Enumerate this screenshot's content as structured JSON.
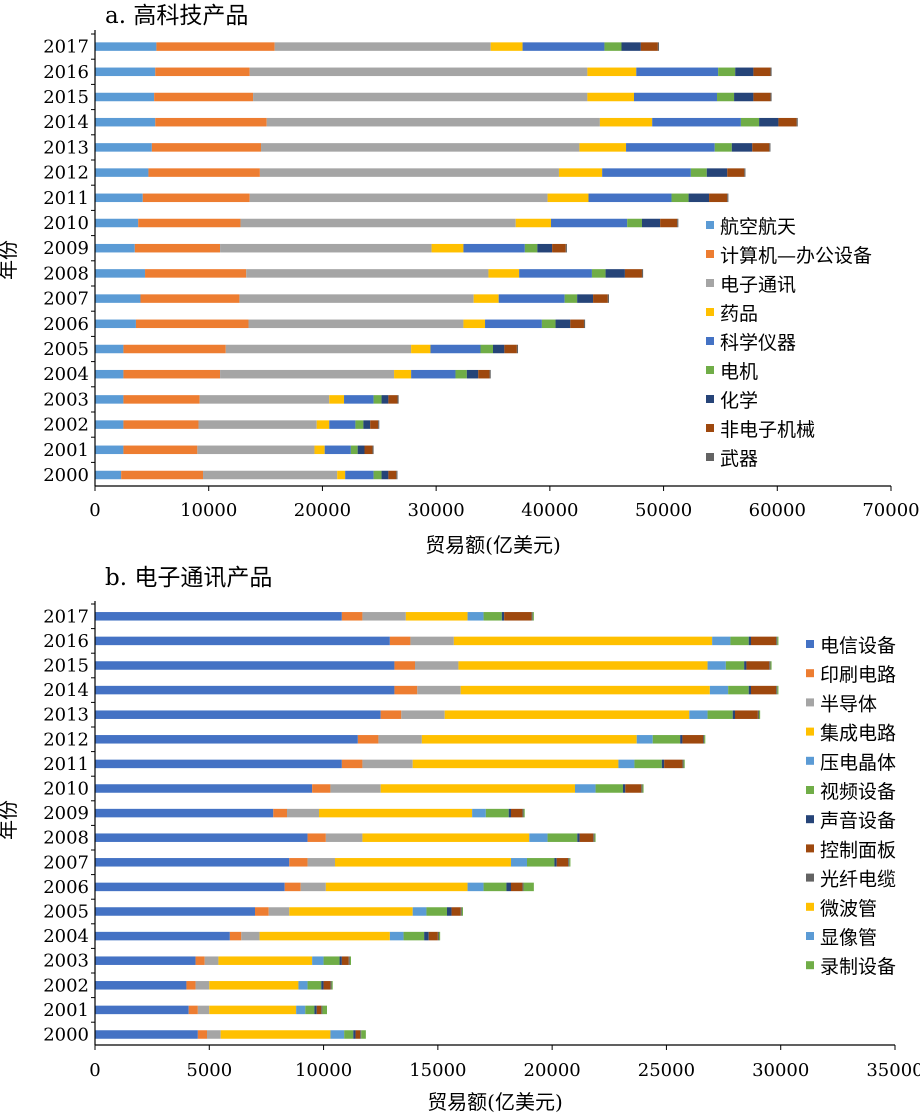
{
  "chart_data": [
    {
      "type": "bar",
      "stacked": true,
      "orientation": "horizontal",
      "title": "a. 高科技产品",
      "xlabel": "贸易额(亿美元)",
      "ylabel": "年份",
      "xlim": [
        0,
        70000
      ],
      "xticks": [
        "0",
        "10000",
        "20000",
        "30000",
        "40000",
        "50000",
        "60000",
        "70000"
      ],
      "legend_position": "right",
      "categories": [
        "2017",
        "2016",
        "2015",
        "2014",
        "2013",
        "2012",
        "2011",
        "2010",
        "2009",
        "2008",
        "2007",
        "2006",
        "2005",
        "2004",
        "2003",
        "2002",
        "2001",
        "2000"
      ],
      "series": [
        {
          "name": "航空航天",
          "color": "#5b9bd5",
          "values": [
            5400,
            5300,
            5200,
            5300,
            5000,
            4700,
            4200,
            3800,
            3500,
            4400,
            4000,
            3600,
            2500,
            2500,
            2500,
            2500,
            2500,
            2300
          ]
        },
        {
          "name": "计算机—办公设备",
          "color": "#ed7d31",
          "values": [
            10400,
            8300,
            8700,
            9800,
            9600,
            9800,
            9400,
            9000,
            7500,
            8900,
            8700,
            9900,
            9000,
            8500,
            6700,
            6600,
            6500,
            7200
          ]
        },
        {
          "name": "电子通讯",
          "color": "#a5a5a5",
          "values": [
            19000,
            29700,
            29400,
            29300,
            28000,
            26300,
            26200,
            24200,
            18600,
            21300,
            20600,
            18900,
            16300,
            15300,
            11400,
            10400,
            10300,
            11800
          ]
        },
        {
          "name": "药品",
          "color": "#ffc000",
          "values": [
            2800,
            4300,
            4100,
            4600,
            4100,
            3800,
            3600,
            3100,
            2800,
            2700,
            2200,
            1900,
            1700,
            1500,
            1300,
            1100,
            900,
            700
          ]
        },
        {
          "name": "科学仪器",
          "color": "#4472c4",
          "values": [
            7200,
            7200,
            7300,
            7800,
            7800,
            7800,
            7300,
            6700,
            5400,
            6400,
            5800,
            5000,
            4400,
            3900,
            2600,
            2300,
            2300,
            2500
          ]
        },
        {
          "name": "电机",
          "color": "#70ad47",
          "values": [
            1500,
            1500,
            1500,
            1600,
            1500,
            1400,
            1500,
            1300,
            1100,
            1200,
            1100,
            1200,
            1100,
            1000,
            700,
            700,
            600,
            700
          ]
        },
        {
          "name": "化学",
          "color": "#264478",
          "values": [
            1700,
            1600,
            1700,
            1700,
            1800,
            1800,
            1800,
            1600,
            1300,
            1700,
            1400,
            1300,
            1000,
            1000,
            600,
            600,
            600,
            600
          ]
        },
        {
          "name": "非电子机械",
          "color": "#9e480e",
          "values": [
            1500,
            1500,
            1500,
            1600,
            1500,
            1500,
            1600,
            1500,
            1200,
            1500,
            1300,
            1200,
            1100,
            1000,
            800,
            700,
            700,
            700
          ]
        },
        {
          "name": "武器",
          "color": "#636363",
          "values": [
            100,
            100,
            100,
            100,
            100,
            100,
            100,
            100,
            100,
            100,
            100,
            100,
            100,
            100,
            100,
            100,
            100,
            100
          ]
        }
      ]
    },
    {
      "type": "bar",
      "stacked": true,
      "orientation": "horizontal",
      "title": "b. 电子通讯产品",
      "xlabel": "贸易额(亿美元)",
      "ylabel": "年份",
      "xlim": [
        0,
        35000
      ],
      "xticks": [
        "0",
        "5000",
        "10000",
        "15000",
        "20000",
        "25000",
        "30000",
        "35000"
      ],
      "legend_position": "right",
      "categories": [
        "2017",
        "2016",
        "2015",
        "2014",
        "2013",
        "2012",
        "2011",
        "2010",
        "2009",
        "2008",
        "2007",
        "2006",
        "2005",
        "2004",
        "2003",
        "2002",
        "2001",
        "2000"
      ],
      "series": [
        {
          "name": "电信设备",
          "color": "#4472c4",
          "values": [
            10800,
            12900,
            13100,
            13100,
            12500,
            11500,
            10800,
            9500,
            7800,
            9300,
            8500,
            8300,
            7000,
            5900,
            4400,
            4000,
            4100,
            4500
          ]
        },
        {
          "name": "印刷电路",
          "color": "#ed7d31",
          "values": [
            900,
            900,
            900,
            1000,
            900,
            900,
            900,
            800,
            600,
            800,
            800,
            700,
            600,
            500,
            400,
            400,
            400,
            400
          ]
        },
        {
          "name": "半导体",
          "color": "#a5a5a5",
          "values": [
            1900,
            1900,
            1900,
            1900,
            1900,
            1900,
            2200,
            2200,
            1400,
            1600,
            1200,
            1100,
            900,
            800,
            600,
            600,
            500,
            600
          ]
        },
        {
          "name": "集成电路",
          "color": "#ffc000",
          "values": [
            2700,
            11300,
            10900,
            10900,
            10700,
            9400,
            9000,
            8500,
            6700,
            7300,
            7700,
            6200,
            5400,
            5700,
            4100,
            3900,
            3800,
            4800
          ]
        },
        {
          "name": "压电晶体",
          "color": "#5b9bd5",
          "values": [
            700,
            800,
            800,
            800,
            800,
            700,
            700,
            900,
            600,
            800,
            700,
            700,
            600,
            600,
            500,
            400,
            400,
            600
          ]
        },
        {
          "name": "视频设备",
          "color": "#70ad47",
          "values": [
            800,
            800,
            800,
            900,
            1100,
            1200,
            1200,
            1200,
            1000,
            1300,
            1200,
            1000,
            900,
            900,
            700,
            600,
            400,
            400
          ]
        },
        {
          "name": "声音设备",
          "color": "#264478",
          "values": [
            100,
            100,
            100,
            100,
            100,
            100,
            100,
            100,
            100,
            100,
            100,
            200,
            200,
            200,
            100,
            100,
            100,
            100
          ]
        },
        {
          "name": "控制面板",
          "color": "#9e480e",
          "values": [
            1200,
            1100,
            1000,
            1100,
            1000,
            900,
            800,
            700,
            500,
            600,
            500,
            500,
            400,
            400,
            300,
            300,
            200,
            200
          ]
        },
        {
          "name": "光纤电缆",
          "color": "#636363",
          "values": [
            50,
            50,
            50,
            50,
            50,
            50,
            50,
            50,
            50,
            50,
            50,
            50,
            50,
            50,
            50,
            50,
            50,
            50
          ]
        },
        {
          "name": "微波管",
          "color": "#ffc000",
          "values": [
            0,
            0,
            0,
            0,
            0,
            0,
            0,
            0,
            0,
            0,
            0,
            0,
            0,
            0,
            0,
            0,
            0,
            0
          ]
        },
        {
          "name": "显像管",
          "color": "#5b9bd5",
          "values": [
            0,
            0,
            0,
            0,
            0,
            0,
            0,
            0,
            0,
            0,
            0,
            0,
            0,
            0,
            0,
            0,
            0,
            0
          ]
        },
        {
          "name": "录制设备",
          "color": "#70ad47",
          "values": [
            50,
            50,
            50,
            50,
            50,
            50,
            50,
            50,
            50,
            50,
            50,
            450,
            50,
            50,
            50,
            50,
            200,
            200
          ]
        }
      ]
    }
  ]
}
